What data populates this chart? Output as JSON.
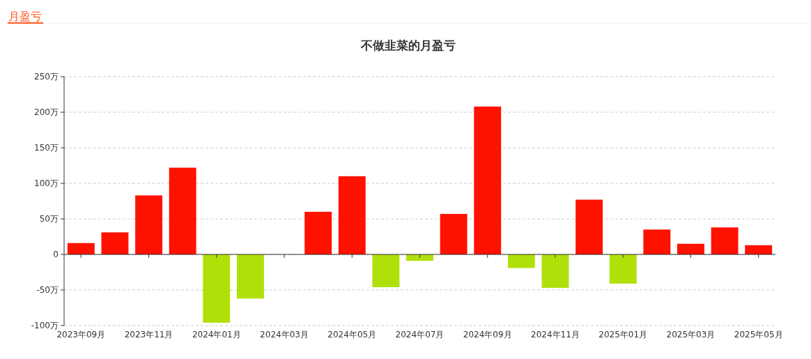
{
  "chart_data": {
    "type": "bar",
    "title": "不做韭菜的月盈亏",
    "annotations": [
      "月盈亏"
    ],
    "categories": [
      "2023年09月",
      null,
      "2023年11月",
      null,
      "2024年01月",
      null,
      "2024年03月",
      null,
      "2024年05月",
      null,
      "2024年07月",
      null,
      "2024年09月",
      null,
      "2024年11月",
      null,
      "2025年01月",
      null,
      "2025年03月",
      null,
      "2025年05月"
    ],
    "values": [
      16,
      31,
      83,
      122,
      -96,
      -62,
      0,
      60,
      110,
      -46,
      -9,
      57,
      208,
      -19,
      -47,
      77,
      -41,
      35,
      15,
      38,
      13
    ],
    "colors": [
      "#ff1100",
      "#ff1100",
      "#ff1100",
      "#ff1100",
      "#b0e00a",
      "#b0e00a",
      "#ff1100",
      "#ff1100",
      "#ff1100",
      "#b0e00a",
      "#b0e00a",
      "#ff1100",
      "#ff1100",
      "#b0e00a",
      "#b0e00a",
      "#ff1100",
      "#b0e00a",
      "#ff1100",
      "#ff1100",
      "#ff1100",
      "#ff1100"
    ],
    "ylim": [
      -100,
      250
    ],
    "yticks": [
      {
        "value": -100,
        "label": "-100万"
      },
      {
        "value": -50,
        "label": "-50万"
      },
      {
        "value": 0,
        "label": "0"
      },
      {
        "value": 50,
        "label": "50万"
      },
      {
        "value": 100,
        "label": "100万"
      },
      {
        "value": 150,
        "label": "150万"
      },
      {
        "value": 200,
        "label": "200万"
      },
      {
        "value": 250,
        "label": "250万"
      }
    ],
    "grid": "y"
  }
}
